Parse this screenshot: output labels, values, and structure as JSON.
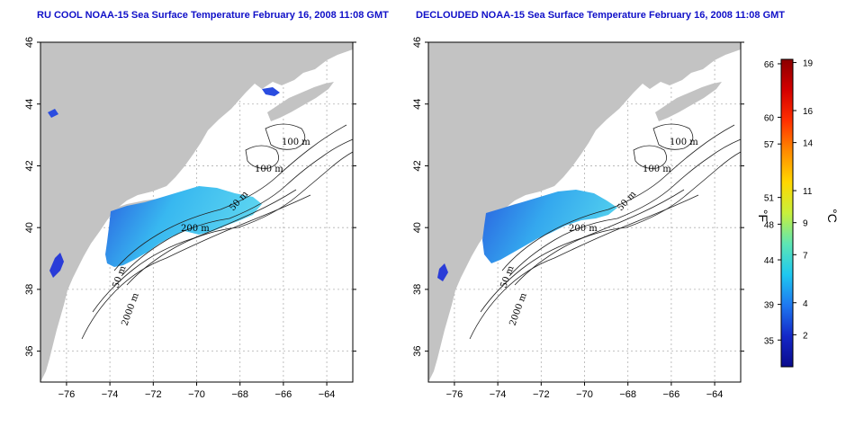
{
  "panels": [
    {
      "id": "left",
      "title": "RU COOL NOAA-15 Sea Surface Temperature February 16, 2008 11:08 GMT"
    },
    {
      "id": "right",
      "title": "DECLOUDED NOAA-15 Sea Surface Temperature February 16, 2008 11:08 GMT"
    }
  ],
  "axes": {
    "lon_ticks": [
      -76,
      -74,
      -72,
      -70,
      -68,
      -66,
      -64
    ],
    "lat_ticks": [
      36,
      38,
      40,
      42,
      44,
      46
    ],
    "lon_range": [
      -77.2,
      -62.8
    ],
    "lat_range": [
      35,
      46
    ]
  },
  "isobaths": [
    {
      "text": "100 m"
    },
    {
      "text": "100 m"
    },
    {
      "text": "50 m"
    },
    {
      "text": "200 m"
    },
    {
      "text": "50 m"
    },
    {
      "text": "2000 m"
    }
  ],
  "colorbar": {
    "fahrenheit_ticks": [
      "66",
      "60",
      "57",
      "51",
      "48",
      "44",
      "39",
      "35"
    ],
    "celsius_ticks": [
      "19",
      "16",
      "14",
      "11",
      "9",
      "7",
      "4",
      "2"
    ],
    "unit_f": "°F",
    "unit_c": "°C",
    "colors": [
      "#8b0000",
      "#d40000",
      "#ff3000",
      "#ff8c00",
      "#ffd700",
      "#c8f03c",
      "#5ee6b4",
      "#1ec8f0",
      "#1e78f0",
      "#1428c8",
      "#0a0a8c"
    ]
  },
  "colors": {
    "land": "#c3c3c3",
    "ocean": "#ffffff",
    "sst_warm": "#4cd0ee",
    "sst_cool": "#2a6ee8",
    "grid": "#b0b0b0"
  }
}
